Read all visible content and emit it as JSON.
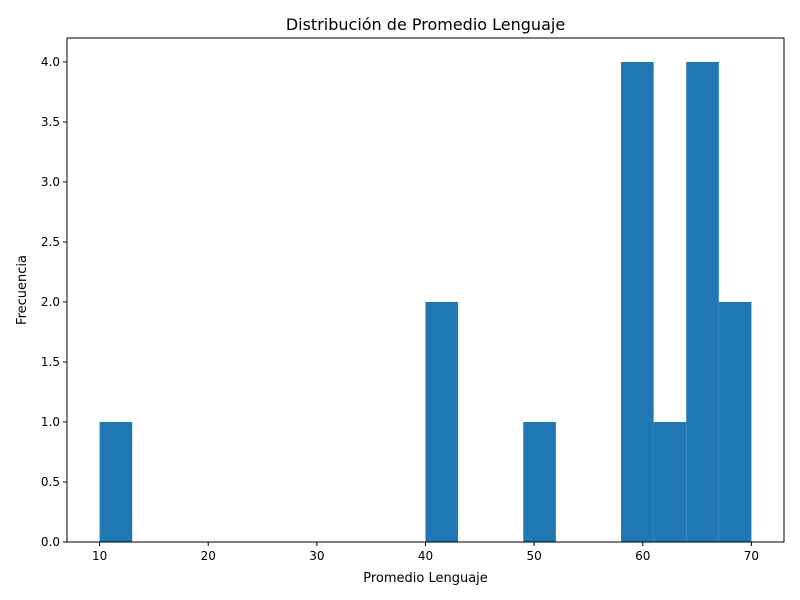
{
  "chart_data": {
    "type": "bar",
    "title": "Distribución de Promedio Lenguaje",
    "xlabel": "Promedio Lenguaje",
    "ylabel": "Frecuencia",
    "xlim": [
      7,
      73
    ],
    "ylim": [
      0,
      4.2
    ],
    "grid": false,
    "legend": "none",
    "bar_color": "#1f77b4",
    "bins": [
      {
        "start": 10,
        "end": 13,
        "value": 1
      },
      {
        "start": 40,
        "end": 43,
        "value": 2
      },
      {
        "start": 49,
        "end": 52,
        "value": 1
      },
      {
        "start": 58,
        "end": 61,
        "value": 4
      },
      {
        "start": 61,
        "end": 64,
        "value": 1
      },
      {
        "start": 64,
        "end": 67,
        "value": 4
      },
      {
        "start": 67,
        "end": 70,
        "value": 2
      }
    ],
    "x_ticks": [
      10,
      20,
      30,
      40,
      50,
      60,
      70
    ],
    "y_ticks": [
      "0.0",
      "0.5",
      "1.0",
      "1.5",
      "2.0",
      "2.5",
      "3.0",
      "3.5",
      "4.0"
    ]
  }
}
